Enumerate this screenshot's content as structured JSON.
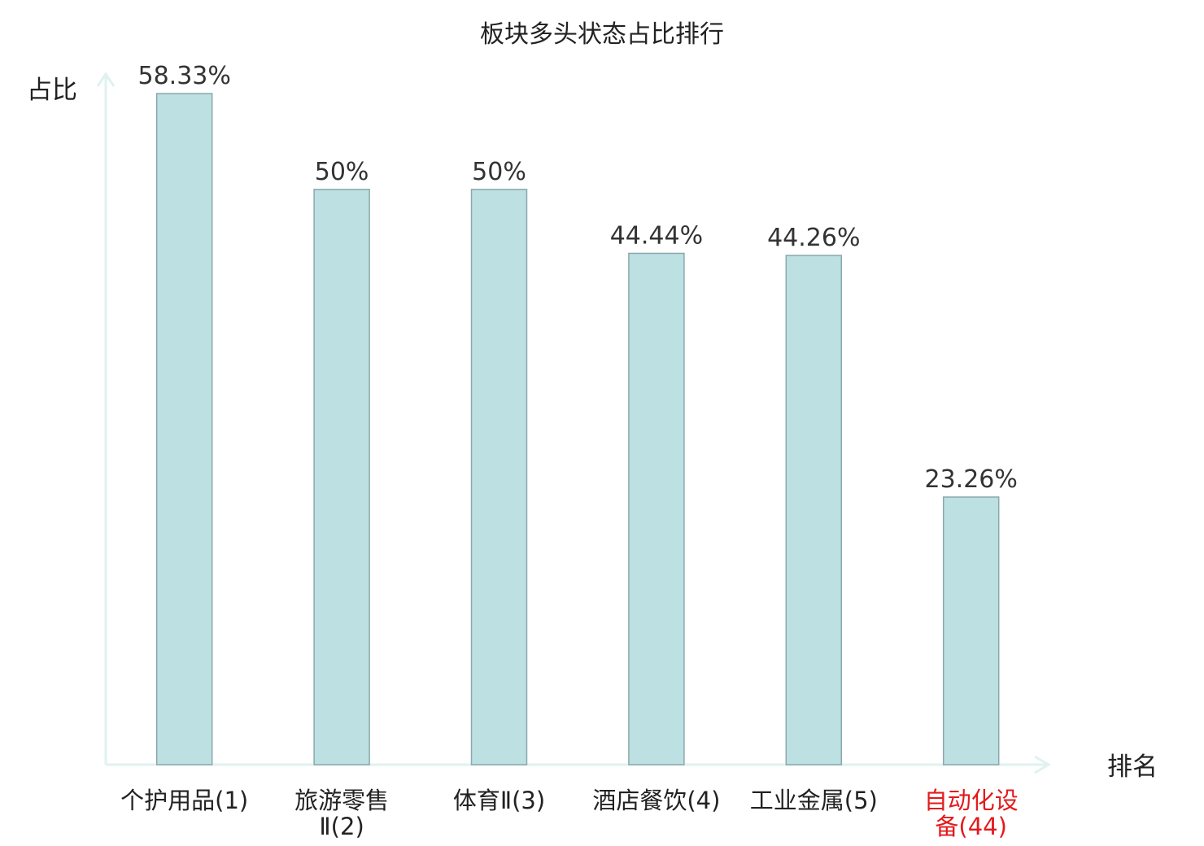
{
  "chart_data": {
    "type": "bar",
    "title": "板块多头状态占比排行",
    "ylabel": "占比",
    "xlabel": "排名",
    "categories": [
      "个护用品(1)",
      "旅游零售Ⅱ(2)",
      "体育Ⅱ(3)",
      "酒店餐饮(4)",
      "工业金属(5)",
      "自动化设备(44)"
    ],
    "values": [
      58.33,
      50,
      50,
      44.44,
      44.26,
      23.26
    ],
    "value_labels": [
      "58.33%",
      "50%",
      "50%",
      "44.44%",
      "44.26%",
      "23.26%"
    ],
    "ylim": [
      0,
      58.33
    ],
    "grid": false,
    "legend": "none",
    "colors": {
      "bar_fill": "#bde0e3",
      "bar_stroke": "#8aa8ac",
      "axis": "#dff2ef",
      "label_default": "#333333",
      "label_highlight": "#e31a1c"
    },
    "highlight_index": 5
  }
}
